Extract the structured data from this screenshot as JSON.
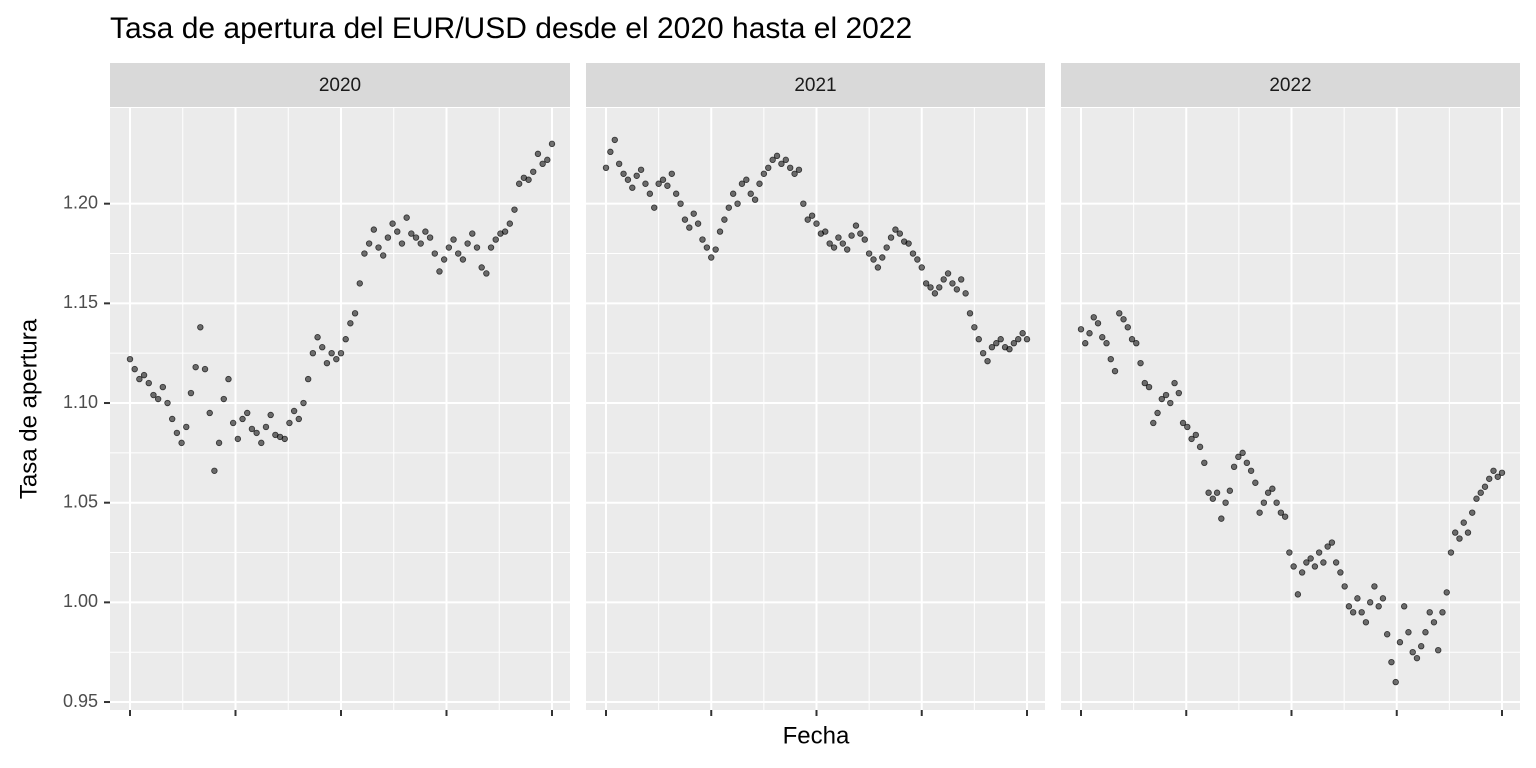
{
  "chart_data": {
    "type": "scatter",
    "title": "Tasa de apertura del EUR/USD desde el 2020 hasta el 2022",
    "xlabel": "Fecha",
    "ylabel": "Tasa de apertura",
    "color": "#000000",
    "ylim": [
      0.946,
      1.248
    ],
    "yticks": [
      0.95,
      {
        "value": 1.0,
        "label": "1.00"
      },
      1.05,
      {
        "value": 1.1,
        "label": "1.10"
      },
      1.15,
      {
        "value": 1.2,
        "label": "1.20"
      }
    ],
    "grid": true,
    "facets": [
      {
        "label": "2020",
        "values": [
          1.122,
          1.117,
          1.112,
          1.114,
          1.11,
          1.104,
          1.102,
          1.108,
          1.1,
          1.092,
          1.085,
          1.08,
          1.088,
          1.105,
          1.118,
          1.138,
          1.117,
          1.095,
          1.066,
          1.08,
          1.102,
          1.112,
          1.09,
          1.082,
          1.092,
          1.095,
          1.087,
          1.085,
          1.08,
          1.088,
          1.094,
          1.084,
          1.083,
          1.082,
          1.09,
          1.096,
          1.092,
          1.1,
          1.112,
          1.125,
          1.133,
          1.128,
          1.12,
          1.125,
          1.122,
          1.125,
          1.132,
          1.14,
          1.145,
          1.16,
          1.175,
          1.18,
          1.187,
          1.178,
          1.174,
          1.183,
          1.19,
          1.186,
          1.18,
          1.193,
          1.185,
          1.183,
          1.18,
          1.186,
          1.183,
          1.175,
          1.166,
          1.172,
          1.178,
          1.182,
          1.175,
          1.172,
          1.18,
          1.185,
          1.178,
          1.168,
          1.165,
          1.178,
          1.182,
          1.185,
          1.186,
          1.19,
          1.197,
          1.21,
          1.213,
          1.212,
          1.216,
          1.225,
          1.22,
          1.222,
          1.23
        ]
      },
      {
        "label": "2021",
        "values": [
          1.218,
          1.226,
          1.232,
          1.22,
          1.215,
          1.212,
          1.208,
          1.214,
          1.217,
          1.21,
          1.205,
          1.198,
          1.21,
          1.212,
          1.209,
          1.215,
          1.205,
          1.2,
          1.192,
          1.188,
          1.195,
          1.19,
          1.182,
          1.178,
          1.173,
          1.177,
          1.186,
          1.192,
          1.198,
          1.205,
          1.2,
          1.21,
          1.212,
          1.205,
          1.202,
          1.21,
          1.215,
          1.218,
          1.222,
          1.224,
          1.22,
          1.222,
          1.218,
          1.215,
          1.217,
          1.2,
          1.192,
          1.194,
          1.19,
          1.185,
          1.186,
          1.18,
          1.178,
          1.183,
          1.18,
          1.177,
          1.184,
          1.189,
          1.185,
          1.182,
          1.175,
          1.172,
          1.168,
          1.173,
          1.178,
          1.183,
          1.187,
          1.185,
          1.181,
          1.18,
          1.175,
          1.172,
          1.168,
          1.16,
          1.158,
          1.155,
          1.158,
          1.162,
          1.165,
          1.16,
          1.157,
          1.162,
          1.155,
          1.145,
          1.138,
          1.132,
          1.125,
          1.121,
          1.128,
          1.13,
          1.132,
          1.128,
          1.127,
          1.13,
          1.132,
          1.135,
          1.132
        ]
      },
      {
        "label": "2022",
        "values": [
          1.137,
          1.13,
          1.135,
          1.143,
          1.14,
          1.133,
          1.13,
          1.122,
          1.116,
          1.145,
          1.142,
          1.138,
          1.132,
          1.13,
          1.12,
          1.11,
          1.108,
          1.09,
          1.095,
          1.102,
          1.104,
          1.1,
          1.11,
          1.105,
          1.09,
          1.088,
          1.082,
          1.084,
          1.078,
          1.07,
          1.055,
          1.052,
          1.055,
          1.042,
          1.05,
          1.056,
          1.068,
          1.073,
          1.075,
          1.07,
          1.066,
          1.06,
          1.045,
          1.05,
          1.055,
          1.057,
          1.05,
          1.045,
          1.043,
          1.025,
          1.018,
          1.004,
          1.015,
          1.02,
          1.022,
          1.018,
          1.025,
          1.02,
          1.028,
          1.03,
          1.02,
          1.015,
          1.008,
          0.998,
          0.995,
          1.002,
          0.995,
          0.99,
          1.0,
          1.008,
          0.998,
          1.002,
          0.984,
          0.97,
          0.96,
          0.98,
          0.998,
          0.985,
          0.975,
          0.972,
          0.978,
          0.985,
          0.995,
          0.99,
          0.976,
          0.995,
          1.005,
          1.025,
          1.035,
          1.032,
          1.04,
          1.035,
          1.045,
          1.052,
          1.055,
          1.058,
          1.062,
          1.066,
          1.063,
          1.065
        ]
      }
    ]
  }
}
